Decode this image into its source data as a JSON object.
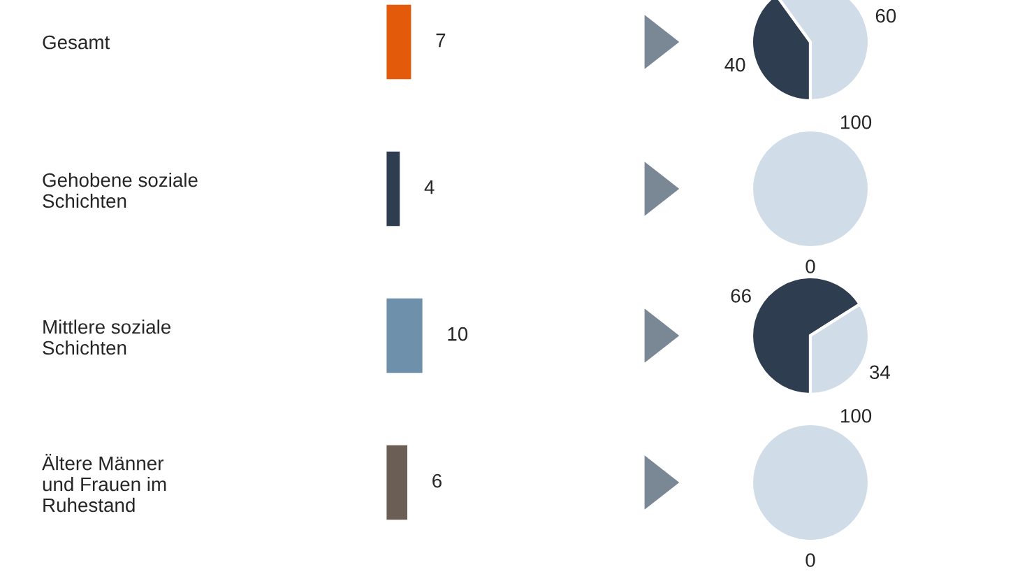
{
  "chart_data": [
    {
      "type": "bar",
      "orientation": "horizontal",
      "categories": [
        "Gesamt",
        "Gehobene soziale\nSchichten",
        "Mittlere soziale\nSchichten",
        "Ältere Männer\nund Frauen im\nRuhestand"
      ],
      "values": [
        7,
        4,
        10,
        6
      ],
      "colors": [
        "#e35a0b",
        "#2e3d50",
        "#6f90ab",
        "#6b5f55"
      ],
      "data_labels": true,
      "tick_labels": "y",
      "grid": false,
      "legend": false
    },
    {
      "type": "pie",
      "categories": [
        null,
        null
      ],
      "values": [
        40,
        60
      ],
      "colors": [
        "#2e3d50",
        "#d0dde8"
      ],
      "value_labels": [
        "40",
        "60"
      ]
    },
    {
      "type": "pie",
      "categories": [
        null,
        null
      ],
      "values": [
        0,
        100
      ],
      "colors": [
        "#2e3d50",
        "#d0dde8"
      ],
      "value_labels": [
        "0",
        "100"
      ]
    },
    {
      "type": "pie",
      "categories": [
        null,
        null
      ],
      "values": [
        66,
        34
      ],
      "colors": [
        "#2e3d50",
        "#d0dde8"
      ],
      "value_labels": [
        "66",
        "34"
      ]
    },
    {
      "type": "pie",
      "categories": [
        null,
        null
      ],
      "values": [
        0,
        100
      ],
      "colors": [
        "#2e3d50",
        "#d0dde8"
      ],
      "value_labels": [
        "0",
        "100"
      ]
    }
  ]
}
